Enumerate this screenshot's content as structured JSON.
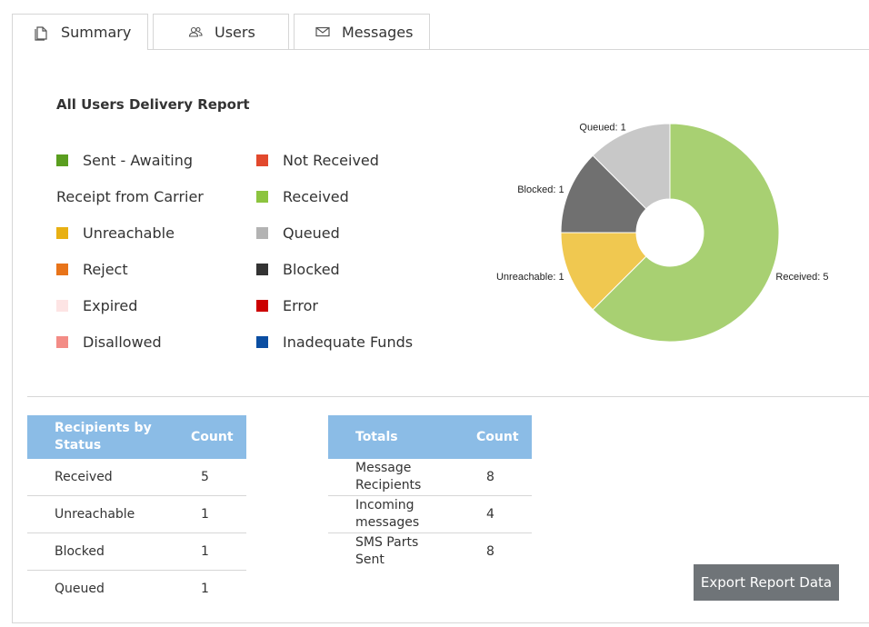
{
  "tabs": [
    {
      "label": "Summary",
      "icon": "document-icon",
      "active": true
    },
    {
      "label": "Users",
      "icon": "users-icon",
      "active": false
    },
    {
      "label": "Messages",
      "icon": "envelope-icon",
      "active": false
    }
  ],
  "report": {
    "title": "All Users Delivery Report",
    "legend": [
      {
        "label": "Sent - Awaiting",
        "color": "#5a9e1f"
      },
      {
        "label": "Receipt from Carrier",
        "color": null
      },
      {
        "label": "Unreachable",
        "color": "#e8b013"
      },
      {
        "label": "Reject",
        "color": "#e8741a"
      },
      {
        "label": "Expired",
        "color": "#fde4e4"
      },
      {
        "label": "Disallowed",
        "color": "#f38c86"
      },
      {
        "label": "Not Received",
        "color": "#e2492d"
      },
      {
        "label": "Received",
        "color": "#8cc43f"
      },
      {
        "label": "Queued",
        "color": "#b3b3b3"
      },
      {
        "label": "Blocked",
        "color": "#333333"
      },
      {
        "label": "Error",
        "color": "#cc0000"
      },
      {
        "label": "Inadequate Funds",
        "color": "#0b4ea2"
      }
    ]
  },
  "chart_data": {
    "type": "pie",
    "donut": true,
    "slices": [
      {
        "label": "Received",
        "value": 5,
        "color": "#a8d072",
        "text": "Received: 5"
      },
      {
        "label": "Unreachable",
        "value": 1,
        "color": "#f0c850",
        "text": "Unreachable: 1"
      },
      {
        "label": "Blocked",
        "value": 1,
        "color": "#707070",
        "text": "Blocked: 1"
      },
      {
        "label": "Queued",
        "value": 1,
        "color": "#c8c8c8",
        "text": "Queued: 1"
      }
    ]
  },
  "status_table": {
    "headers": [
      "Recipients by Status",
      "Count"
    ],
    "rows": [
      {
        "label": "Received",
        "count": "5"
      },
      {
        "label": "Unreachable",
        "count": "1"
      },
      {
        "label": "Blocked",
        "count": "1"
      },
      {
        "label": "Queued",
        "count": "1"
      }
    ]
  },
  "totals_table": {
    "headers": [
      "Totals",
      "Count"
    ],
    "rows": [
      {
        "label": "Message Recipients",
        "count": "8"
      },
      {
        "label": "Incoming messages",
        "count": "4"
      },
      {
        "label": "SMS Parts Sent",
        "count": "8"
      }
    ]
  },
  "export_label": "Export Report Data"
}
